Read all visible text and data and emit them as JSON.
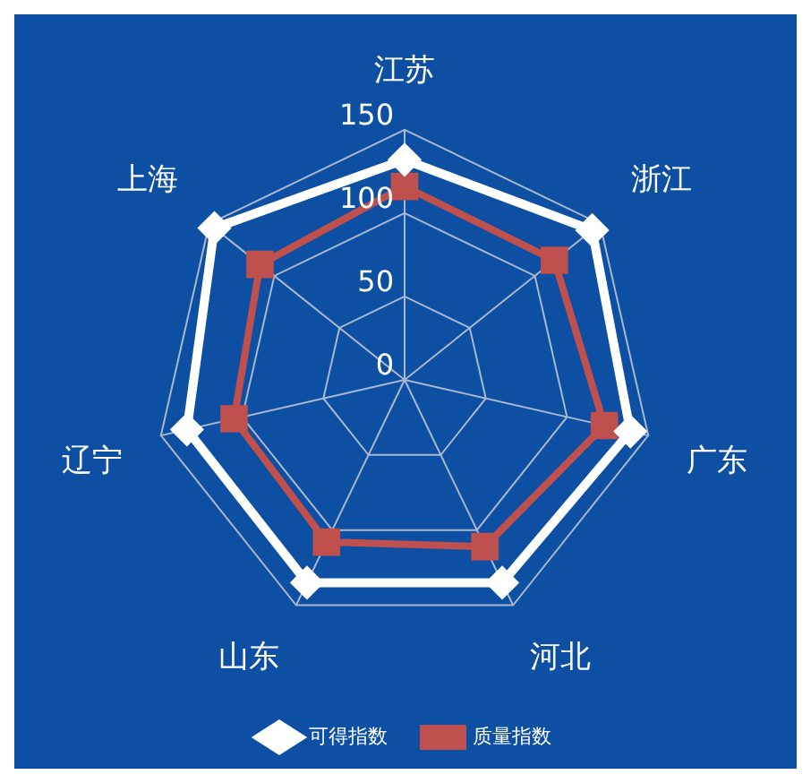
{
  "chart_data": {
    "type": "radar",
    "categories": [
      "江苏",
      "浙江",
      "广东",
      "河北",
      "山东",
      "辽宁",
      "上海"
    ],
    "series": [
      {
        "name": "可得指数",
        "color": "#ffffff",
        "values": [
          132,
          144,
          139,
          135,
          135,
          134,
          146
        ],
        "marker": "diamond"
      },
      {
        "name": "质量指数",
        "color": "#c0504d",
        "values": [
          116,
          115,
          123,
          111,
          108,
          105,
          111
        ],
        "marker": "square"
      }
    ],
    "ylim": [
      0,
      150
    ],
    "yticks": [
      0,
      50,
      100,
      150
    ],
    "grid": true,
    "legend": "bottom",
    "line_style": "solid"
  }
}
